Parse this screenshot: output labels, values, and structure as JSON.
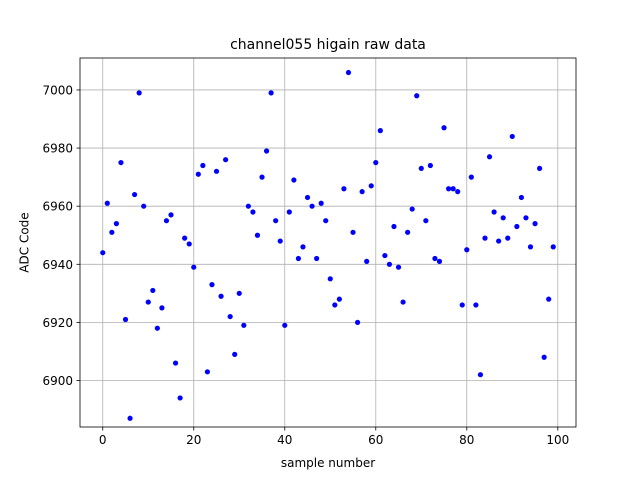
{
  "chart_data": {
    "type": "scatter",
    "title": "channel055 higain raw data",
    "xlabel": "sample number",
    "ylabel": "ADC Code",
    "xlim": [
      -5,
      104
    ],
    "ylim": [
      6884,
      7011
    ],
    "xticks": [
      0,
      20,
      40,
      60,
      80,
      100
    ],
    "yticks": [
      6900,
      6920,
      6940,
      6960,
      6980,
      7000
    ],
    "grid": true,
    "marker_color": "#0000ff",
    "x": [
      0,
      1,
      2,
      3,
      4,
      5,
      6,
      7,
      8,
      9,
      10,
      11,
      12,
      13,
      14,
      15,
      16,
      17,
      18,
      19,
      20,
      21,
      22,
      23,
      24,
      25,
      26,
      27,
      28,
      29,
      30,
      31,
      32,
      33,
      34,
      35,
      36,
      37,
      38,
      39,
      40,
      41,
      42,
      43,
      44,
      45,
      46,
      47,
      48,
      49,
      50,
      51,
      52,
      53,
      54,
      55,
      56,
      57,
      58,
      59,
      60,
      61,
      62,
      63,
      64,
      65,
      66,
      67,
      68,
      69,
      70,
      71,
      72,
      73,
      74,
      75,
      76,
      77,
      78,
      79,
      80,
      81,
      82,
      83,
      84,
      85,
      86,
      87,
      88,
      89,
      90,
      91,
      92,
      93,
      94,
      95,
      96,
      97,
      98,
      99
    ],
    "y": [
      6944,
      6961,
      6951,
      6954,
      6975,
      6921,
      6887,
      6964,
      6999,
      6960,
      6927,
      6931,
      6918,
      6925,
      6955,
      6957,
      6906,
      6894,
      6949,
      6947,
      6939,
      6971,
      6974,
      6903,
      6933,
      6972,
      6929,
      6976,
      6922,
      6909,
      6930,
      6919,
      6960,
      6958,
      6950,
      6970,
      6979,
      6999,
      6955,
      6948,
      6919,
      6958,
      6969,
      6942,
      6946,
      6963,
      6960,
      6942,
      6961,
      6955,
      6935,
      6926,
      6928,
      6966,
      7006,
      6951,
      6920,
      6965,
      6941,
      6967,
      6975,
      6986,
      6943,
      6940,
      6953,
      6939,
      6927,
      6951,
      6959,
      6998,
      6973,
      6955,
      6974,
      6942,
      6941,
      6987,
      6966,
      6966,
      6965,
      6926,
      6945,
      6970,
      6926,
      6902,
      6949,
      6977,
      6958,
      6948,
      6956,
      6949,
      6984,
      6953,
      6963,
      6956,
      6946,
      6954,
      6973,
      6908,
      6928,
      6946
    ]
  }
}
